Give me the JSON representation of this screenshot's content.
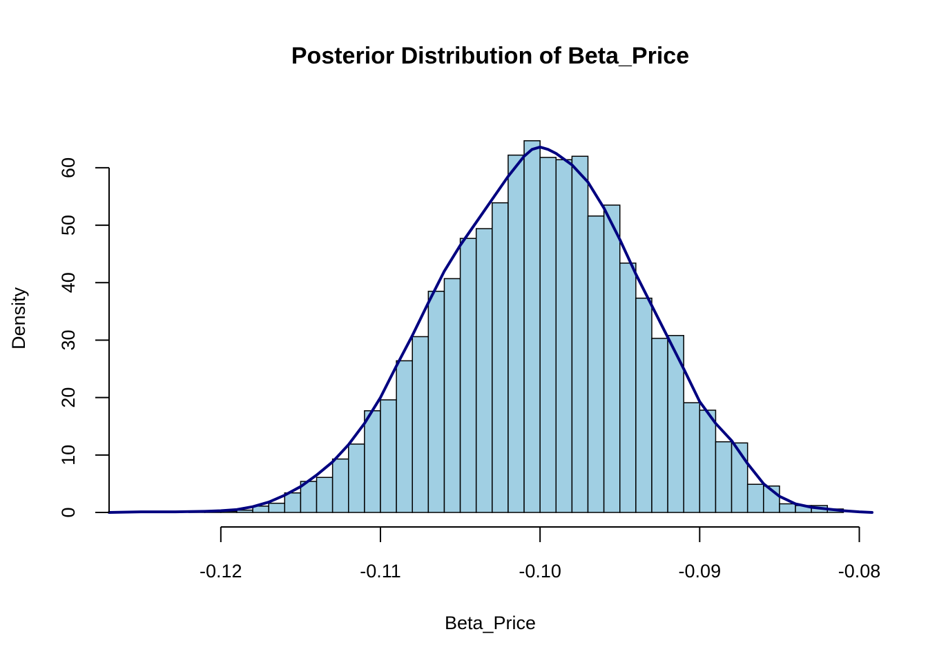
{
  "chart_data": {
    "type": "histogram",
    "title": "Posterior Distribution of Beta_Price",
    "xlabel": "Beta_Price",
    "ylabel": "Density",
    "xlim": [
      -0.127,
      -0.0792
    ],
    "ylim": [
      0,
      66
    ],
    "x_ticks": [
      -0.12,
      -0.11,
      -0.1,
      -0.09,
      -0.08
    ],
    "x_tick_labels": [
      "-0.12",
      "-0.11",
      "-0.10",
      "-0.09",
      "-0.08"
    ],
    "y_ticks": [
      0,
      10,
      20,
      30,
      40,
      50,
      60
    ],
    "y_tick_labels": [
      "0",
      "10",
      "20",
      "30",
      "40",
      "50",
      "60"
    ],
    "bin_width": 0.001,
    "bins": {
      "start": [
        -0.122,
        -0.121,
        -0.12,
        -0.119,
        -0.118,
        -0.117,
        -0.116,
        -0.115,
        -0.114,
        -0.113,
        -0.112,
        -0.111,
        -0.11,
        -0.109,
        -0.108,
        -0.107,
        -0.106,
        -0.105,
        -0.104,
        -0.103,
        -0.102,
        -0.101,
        -0.1,
        -0.099,
        -0.098,
        -0.097,
        -0.096,
        -0.095,
        -0.094,
        -0.093,
        -0.092,
        -0.091,
        -0.09,
        -0.089,
        -0.088,
        -0.087,
        -0.086,
        -0.085,
        -0.084,
        -0.083,
        -0.082
      ],
      "density": [
        0.2,
        0.2,
        0.2,
        0.4,
        1.1,
        1.6,
        3.4,
        5.4,
        6.1,
        9.3,
        11.9,
        17.7,
        19.6,
        26.4,
        30.6,
        38.5,
        40.7,
        47.7,
        49.4,
        53.9,
        62.2,
        64.7,
        61.8,
        61.4,
        62.0,
        51.6,
        53.5,
        43.4,
        37.3,
        30.3,
        30.8,
        19.1,
        17.8,
        12.3,
        12.1,
        4.9,
        4.6,
        1.5,
        1.2,
        1.2,
        0.6
      ]
    },
    "density_curve": {
      "x": [
        -0.127,
        -0.125,
        -0.123,
        -0.121,
        -0.12,
        -0.119,
        -0.118,
        -0.117,
        -0.116,
        -0.115,
        -0.114,
        -0.113,
        -0.112,
        -0.111,
        -0.11,
        -0.109,
        -0.108,
        -0.107,
        -0.106,
        -0.105,
        -0.104,
        -0.103,
        -0.102,
        -0.101,
        -0.1005,
        -0.1,
        -0.0995,
        -0.099,
        -0.098,
        -0.097,
        -0.096,
        -0.095,
        -0.094,
        -0.093,
        -0.092,
        -0.091,
        -0.09,
        -0.089,
        -0.088,
        -0.087,
        -0.086,
        -0.085,
        -0.084,
        -0.083,
        -0.082,
        -0.081,
        -0.08,
        -0.0792
      ],
      "y": [
        0.0,
        0.1,
        0.1,
        0.2,
        0.3,
        0.5,
        1.0,
        1.8,
        3.0,
        4.5,
        6.5,
        8.8,
        11.8,
        15.5,
        20.0,
        25.5,
        30.8,
        36.5,
        42.0,
        46.5,
        50.5,
        54.5,
        58.5,
        62.0,
        63.2,
        63.6,
        63.2,
        62.5,
        60.5,
        57.5,
        53.0,
        47.5,
        41.5,
        36.0,
        30.5,
        25.0,
        19.3,
        15.5,
        12.5,
        8.5,
        5.0,
        2.8,
        1.5,
        0.9,
        0.6,
        0.3,
        0.1,
        0.0
      ]
    },
    "colors": {
      "bar_fill": "#a0cfe3",
      "bar_stroke": "#000000",
      "density_line": "#000080",
      "axis": "#000000"
    },
    "grid": false,
    "legend": "none"
  }
}
